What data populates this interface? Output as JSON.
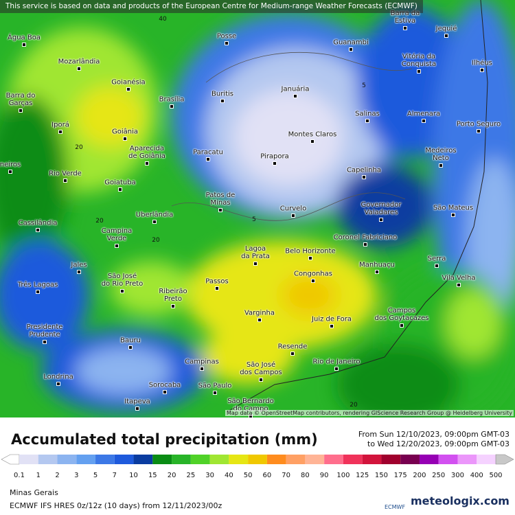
{
  "header": {
    "attribution": "This service is based on data and products of the European Centre for Medium-range Weather Forecasts (ECMWF)"
  },
  "map": {
    "credit": "Map data © OpenStreetMap contributors, rendering GIScience Research Group @ Heidelberg University",
    "cities": [
      [
        "Barra da",
        "Estiva"
      ],
      [
        "Jequié"
      ],
      [
        "Água Boa"
      ],
      [
        "Posse"
      ],
      [
        "Guanambi"
      ],
      [
        "Vitória da",
        "Conquista"
      ],
      [
        "Ilhéus"
      ],
      [
        "Mozarlândia"
      ],
      [
        "Goianésia"
      ],
      [
        "Januária"
      ],
      [
        "Buritis"
      ],
      [
        "Barra do",
        "Garças"
      ],
      [
        "Brasília"
      ],
      [
        "Salinas"
      ],
      [
        "Almenara"
      ],
      [
        "Iporá"
      ],
      [
        "Goiânia"
      ],
      [
        "Porto Seguro"
      ],
      [
        "Montes Claros"
      ],
      [
        "Aparecida",
        "de Goiânia"
      ],
      [
        "Paracatu"
      ],
      [
        "Pirapora"
      ],
      [
        "Medeiros",
        "Neto"
      ],
      [
        "Capelinha"
      ],
      [
        "Rio Verde"
      ],
      [
        "Goiatuba"
      ],
      [
        "neiros"
      ],
      [
        "Patos de",
        "Minas"
      ],
      [
        "Curvelo"
      ],
      [
        "Governador",
        "Valadares"
      ],
      [
        "São Mateus"
      ],
      [
        "Uberlândia"
      ],
      [
        "Cassilândia"
      ],
      [
        "Campina",
        "Verde"
      ],
      [
        "Coronel Fabriciano"
      ],
      [
        "Lagoa",
        "da Prata"
      ],
      [
        "Belo Horizonte"
      ],
      [
        "Serra"
      ],
      [
        "Manhuaçu"
      ],
      [
        "Jales"
      ],
      [
        "Vila Velha"
      ],
      [
        "Congonhas"
      ],
      [
        "Passos"
      ],
      [
        "São José",
        "do Rio Preto"
      ],
      [
        "Três Lagoas"
      ],
      [
        "Ribeirão",
        "Preto"
      ],
      [
        "Varginha"
      ],
      [
        "Campos",
        "dos Goytacazes"
      ],
      [
        "Juiz de Fora"
      ],
      [
        "Presidente",
        "Prudente"
      ],
      [
        "Bauru"
      ],
      [
        "Resende"
      ],
      [
        "Campinas"
      ],
      [
        "São José",
        "dos Campos"
      ],
      [
        "Rio de Janeiro"
      ],
      [
        "Londrina"
      ],
      [
        "Sorocaba"
      ],
      [
        "São Paulo"
      ],
      [
        "Itapeva"
      ],
      [
        "São Bernardo",
        "do Campo"
      ]
    ],
    "contour_labels": [
      "40",
      "20",
      "5",
      "5",
      "20",
      "20",
      "20"
    ]
  },
  "footer": {
    "title": "Accumulated total precipitation (mm)",
    "from": "From Sun 12/10/2023, 09:00pm GMT-03",
    "to": "to Wed 12/20/2023, 09:00pm GMT-03",
    "region": "Minas Gerais",
    "model": "ECMWF IFS HRES 0z/12z (10 days) from 12/11/2023/00z",
    "ecmwf_logo": "ECMWF",
    "brand": "meteologix.com"
  },
  "legend": {
    "labels": [
      "0.1",
      "1",
      "2",
      "3",
      "5",
      "7",
      "10",
      "15",
      "20",
      "25",
      "30",
      "40",
      "50",
      "60",
      "70",
      "80",
      "90",
      "100",
      "125",
      "150",
      "175",
      "200",
      "250",
      "300",
      "400",
      "500"
    ],
    "colors": [
      "#ffffff",
      "#e1e1f5",
      "#b4c8f0",
      "#8cb4f0",
      "#64a0f0",
      "#3c78e6",
      "#1e5adc",
      "#0a3ca0",
      "#0a8c14",
      "#28b428",
      "#50d228",
      "#a0e632",
      "#e6e614",
      "#f0c800",
      "#ff8c1e",
      "#ffa064",
      "#ffb496",
      "#ff6e8c",
      "#f0325a",
      "#d2143c",
      "#a0002d",
      "#780050",
      "#9600b4",
      "#d250f0",
      "#eb96fa",
      "#f5d2ff",
      "#c8c8c8"
    ]
  }
}
